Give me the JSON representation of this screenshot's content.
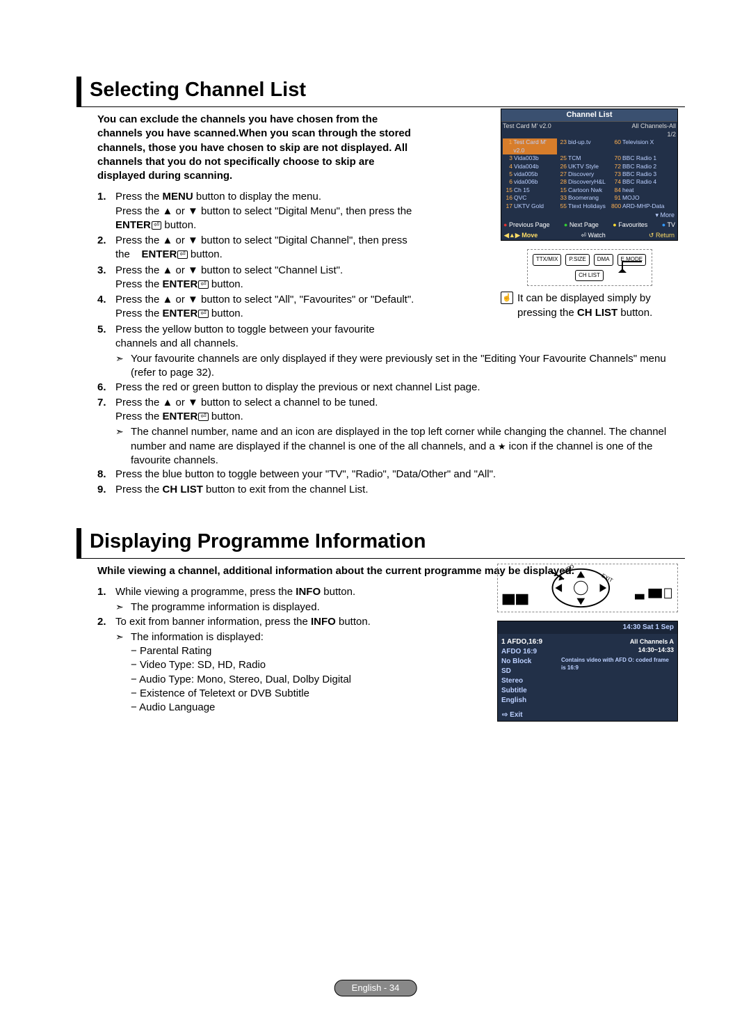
{
  "section1": {
    "title": "Selecting Channel List",
    "intro": "You can exclude the channels you have chosen from the channels you have scanned.When you scan through the stored channels, those you have chosen to skip are not displayed. All channels that you do not specifically choose to skip are displayed during scanning.",
    "steps": [
      {
        "n": "1.",
        "t": "Press the <b>MENU</b> button to display the menu.<br>Press the ▲ or ▼ button to select \"Digital Menu\", then press the <b>ENTER</b><span class='enter-icon' data-name='enter-icon' data-interactable='false'>⏎</span> button."
      },
      {
        "n": "2.",
        "t": "Press the ▲ or ▼ button to select \"Digital Channel\", then press the &nbsp;&nbsp;&nbsp;<b>ENTER</b><span class='enter-icon' data-name='enter-icon' data-interactable='false'>⏎</span> button."
      },
      {
        "n": "3.",
        "t": "Press the ▲ or ▼ button to select \"Channel List\".<br>Press the <b>ENTER</b><span class='enter-icon' data-name='enter-icon' data-interactable='false'>⏎</span> button."
      },
      {
        "n": "4.",
        "t": "Press the ▲ or ▼ button to select \"All\", \"Favourites\" or \"Default\".<br>Press the <b>ENTER</b><span class='enter-icon' data-name='enter-icon' data-interactable='false'>⏎</span> button."
      },
      {
        "n": "5.",
        "t": "Press the yellow button to toggle between your favourite channels and all channels.",
        "sub": [
          {
            "a": "➣",
            "t": "Your favourite channels are only displayed if they were previously set in the \"Editing Your Favourite Channels\" menu (refer to page 32)."
          }
        ]
      },
      {
        "n": "6.",
        "t": "Press the red or green button to display the previous or next channel List page."
      },
      {
        "n": "7.",
        "t": "Press the ▲ or ▼ button to select a channel to be tuned.<br>Press the <b>ENTER</b><span class='enter-icon' data-name='enter-icon' data-interactable='false'>⏎</span> button.",
        "sub": [
          {
            "a": "➣",
            "t": "The channel number, name and an icon are displayed in the top left corner while changing the channel. The channel number and name are displayed if the channel is one of the all channels, and a <span class='star'>★</span> icon if the channel is one of the favourite channels."
          }
        ]
      },
      {
        "n": "8.",
        "t": "Press the blue button to toggle between your \"TV\", \"Radio\", \"Data/Other\" and \"All\"."
      },
      {
        "n": "9.",
        "t": "Press the <b>CH LIST</b> button to exit from the channel List."
      }
    ],
    "note": "It can be displayed simply by pressing the <b>CH LIST</b> button."
  },
  "channel_list": {
    "title": "Channel List",
    "top_left": "Test Card M' v2.0",
    "top_right": "All Channels-All",
    "page": "1/2",
    "rows": [
      {
        "c1n": "1",
        "c1": "Test Card M' v2.0",
        "c2n": "23",
        "c2": "bid-up.tv",
        "c3n": "60",
        "c3": "Television X",
        "hl": true
      },
      {
        "c1n": "3",
        "c1": "Vida003b",
        "c2n": "25",
        "c2": "TCM",
        "c3n": "70",
        "c3": "BBC Radio 1"
      },
      {
        "c1n": "4",
        "c1": "Vida004b",
        "c2n": "26",
        "c2": "UKTV Style",
        "c3n": "72",
        "c3": "BBC Radio 2"
      },
      {
        "c1n": "5",
        "c1": "vida005b",
        "c2n": "27",
        "c2": "Discovery",
        "c3n": "73",
        "c3": "BBC Radio 3"
      },
      {
        "c1n": "6",
        "c1": "vida006b",
        "c2n": "28",
        "c2": "DiscoveryH&L",
        "c3n": "74",
        "c3": "BBC Radio 4"
      },
      {
        "c1n": "15",
        "c1": "Ch 15",
        "c2n": "15",
        "c2": "Cartoon Nwk",
        "c3n": "84",
        "c3": "heat"
      },
      {
        "c1n": "16",
        "c1": "QVC",
        "c2n": "33",
        "c2": "Boomerang",
        "c3n": "91",
        "c3": "MOJO"
      },
      {
        "c1n": "17",
        "c1": "UKTV Gold",
        "c2n": "55",
        "c2": "Ttext Holidays",
        "c3n": "800",
        "c3": "ARD-MHP-Data"
      }
    ],
    "more": "More",
    "legend": {
      "r": "Previous Page",
      "g": "Next Page",
      "y": "Favourites",
      "b": "TV"
    },
    "footer": {
      "move": "◀▲▶ Move",
      "watch": "Watch",
      "ret": "Return"
    }
  },
  "remote_buttons": [
    "TTX/MIX",
    "P.SIZE",
    "DMA",
    "E.MODE",
    "CH LIST"
  ],
  "section2": {
    "title": "Displaying Programme Information",
    "intro": "While viewing a channel, additional information about the current programme may be displayed.",
    "steps": [
      {
        "n": "1.",
        "t": "While viewing a programme, press the <b>INFO</b> button.",
        "sub": [
          {
            "a": "➣",
            "t": "The programme information is displayed."
          }
        ]
      },
      {
        "n": "2.",
        "t": "To exit from banner information, press the <b>INFO</b> button.",
        "sub": [
          {
            "a": "➣",
            "t": "The information is displayed:"
          }
        ],
        "dash": [
          "Parental Rating",
          "Video Type: SD, HD, Radio",
          "Audio Type: Mono, Stereo, Dual, Dolby Digital",
          "Existence of Teletext or DVB Subtitle",
          "Audio Language"
        ]
      }
    ]
  },
  "banner": {
    "top": "14:30 Sat 1 Sep",
    "left": [
      "1 AFDO,16:9",
      "AFDO 16:9",
      "No Block",
      "SD",
      "Stereo",
      "Subtitle",
      "English"
    ],
    "right1": "All Channels   A",
    "right2": "14:30~14:33",
    "right3": "Contains video with AFD O: coded frame is 16:9",
    "exit": "Exit"
  },
  "footer": "English - 34"
}
